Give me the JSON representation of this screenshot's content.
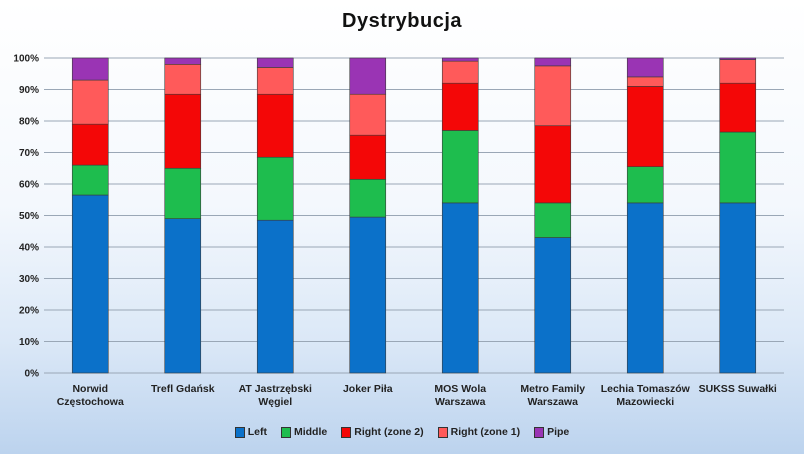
{
  "chart_data": {
    "type": "bar",
    "stacked": true,
    "title": "Dystrybucja",
    "xlabel": "",
    "ylabel": "",
    "ylim": [
      0,
      100
    ],
    "y_ticks": [
      "0%",
      "10%",
      "20%",
      "30%",
      "40%",
      "50%",
      "60%",
      "70%",
      "80%",
      "90%",
      "100%"
    ],
    "grid": true,
    "legend_position": "bottom",
    "categories": [
      [
        "Norwid",
        "Częstochowa"
      ],
      [
        "Trefl Gdańsk"
      ],
      [
        "AT Jastrzębski",
        "Węgiel"
      ],
      [
        "Joker Piła"
      ],
      [
        "MOS Wola",
        "Warszawa"
      ],
      [
        "Metro Family",
        "Warszawa"
      ],
      [
        "Lechia Tomaszów",
        "Mazowiecki"
      ],
      [
        "SUKSS Suwałki"
      ]
    ],
    "series": [
      {
        "name": "Left",
        "color": "#0b71c9",
        "values": [
          56.5,
          49,
          48.5,
          49.5,
          54,
          43,
          54,
          54
        ]
      },
      {
        "name": "Middle",
        "color": "#1ebd4e",
        "values": [
          9.5,
          16,
          20,
          12,
          23,
          11,
          11.5,
          22.5
        ]
      },
      {
        "name": "Right (zone 2)",
        "color": "#f40707",
        "values": [
          13,
          23.5,
          20,
          14,
          15,
          24.5,
          25.5,
          15.5
        ]
      },
      {
        "name": "Right (zone 1)",
        "color": "#ff5a5a",
        "values": [
          14,
          9.5,
          8.5,
          13,
          7,
          19,
          3,
          7.5
        ]
      },
      {
        "name": "Pipe",
        "color": "#9a34b4",
        "values": [
          7,
          2,
          3,
          11.5,
          1,
          2.5,
          6,
          0.5
        ]
      }
    ]
  }
}
